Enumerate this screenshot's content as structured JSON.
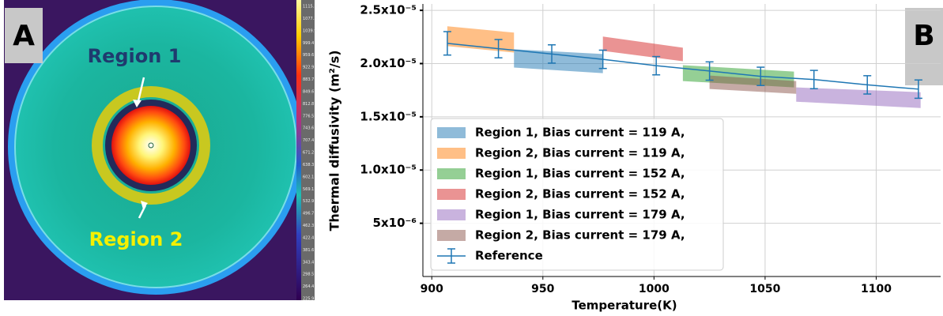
{
  "panel_a": {
    "label": "A",
    "region_1": "Region 1",
    "region_2": "Region 2",
    "colorbar_labels": [
      "1115.3",
      "1077.3",
      "1039.9",
      "999.4",
      "959.6",
      "922.9",
      "883.7",
      "849.6",
      "812.8",
      "776.5",
      "743.6",
      "707.4",
      "671.2",
      "638.3",
      "602.1",
      "569.1",
      "532.9",
      "496.7",
      "462.3",
      "422.4",
      "381.6",
      "343.4",
      "298.5",
      "264.4",
      "225.9"
    ]
  },
  "panel_b_label": "B",
  "chart_data": {
    "type": "line",
    "xlabel": "Temperature(K)",
    "ylabel": "Thermal diffusivity (m²/s)",
    "xlim": [
      896,
      1129
    ],
    "ylim": [
      0,
      2.56e-05
    ],
    "xticks": [
      900,
      950,
      1000,
      1050,
      1100
    ],
    "yticks": [
      {
        "value": 5e-06,
        "label": "5x10⁻⁶"
      },
      {
        "value": 1e-05,
        "label": "1.0x10⁻⁵"
      },
      {
        "value": 1.5e-05,
        "label": "1.5x10⁻⁵"
      },
      {
        "value": 2e-05,
        "label": "2.0x10⁻⁵"
      },
      {
        "value": 2.5e-05,
        "label": "2.5x10⁻⁵"
      }
    ],
    "grid": true,
    "legend": "lower left",
    "series": [
      {
        "name": "Region 1, Bias current = 119 A,",
        "type": "band",
        "color": "#1f77b4",
        "x": [
          937,
          977
        ],
        "lower": [
          1.963e-05,
          1.91e-05
        ],
        "upper": [
          2.134e-05,
          2.09e-05
        ]
      },
      {
        "name": "Region 2, Bias current = 119 A,",
        "type": "band",
        "color": "#ff7f0e",
        "x": [
          907,
          937
        ],
        "lower": [
          2.164e-05,
          2.104e-05
        ],
        "upper": [
          2.35e-05,
          2.291e-05
        ]
      },
      {
        "name": "Region 1, Bias current = 152 A,",
        "type": "band",
        "color": "#2ca02c",
        "x": [
          1013,
          1063
        ],
        "lower": [
          1.836e-05,
          1.776e-05
        ],
        "upper": [
          1.985e-05,
          1.925e-05
        ]
      },
      {
        "name": "Region 2, Bias current = 152 A,",
        "type": "band",
        "color": "#d62728",
        "x": [
          977,
          1013
        ],
        "lower": [
          2.119e-05,
          2.022e-05
        ],
        "upper": [
          2.254e-05,
          2.149e-05
        ]
      },
      {
        "name": "Region 1, Bias current = 179 A,",
        "type": "band",
        "color": "#9467bd",
        "x": [
          1064,
          1120
        ],
        "lower": [
          1.642e-05,
          1.582e-05
        ],
        "upper": [
          1.776e-05,
          1.731e-05
        ]
      },
      {
        "name": "Region 2, Bias current = 179 A,",
        "type": "band",
        "color": "#8c564b",
        "x": [
          1025,
          1064
        ],
        "lower": [
          1.761e-05,
          1.716e-05
        ],
        "upper": [
          1.888e-05,
          1.836e-05
        ]
      },
      {
        "name": "Reference",
        "type": "errorbar",
        "color": "#1f77b4",
        "x": [
          907,
          930,
          954,
          977,
          1001,
          1025,
          1048,
          1072,
          1096,
          1119
        ],
        "values": [
          2.19e-05,
          2.14e-05,
          2.09e-05,
          2.04e-05,
          1.98e-05,
          1.93e-05,
          1.88e-05,
          1.85e-05,
          1.8e-05,
          1.76e-05
        ],
        "errors": [
          1.1e-06,
          8.6e-07,
          8.6e-07,
          8.6e-07,
          8.6e-07,
          8.6e-07,
          8.6e-07,
          8.6e-07,
          8.6e-07,
          8.6e-07
        ]
      }
    ]
  }
}
